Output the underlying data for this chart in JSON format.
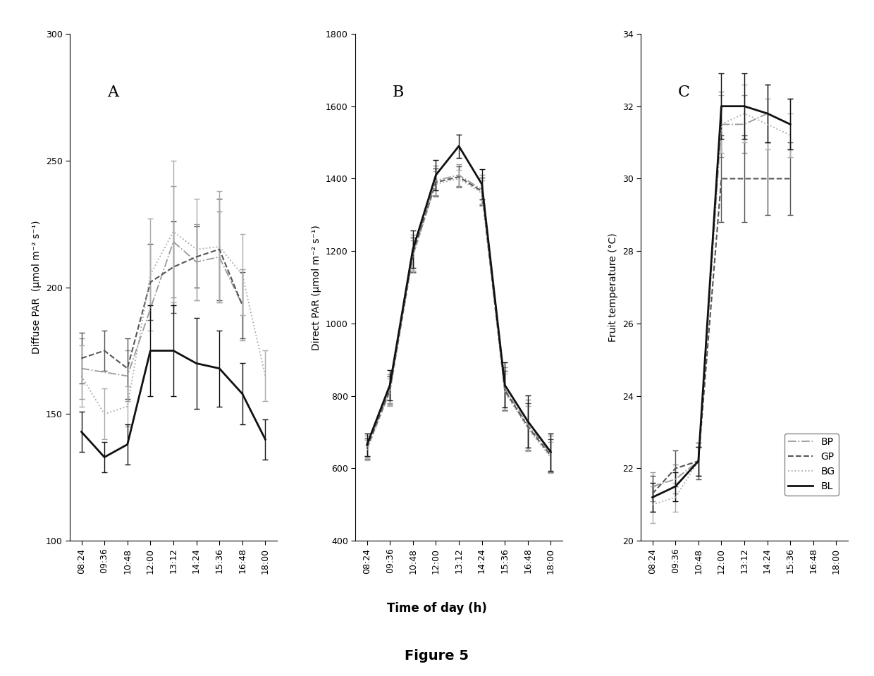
{
  "time_labels": [
    "08:24",
    "09:36",
    "10:48",
    "12:00",
    "13:12",
    "14:24",
    "15:36",
    "16:48",
    "18:00"
  ],
  "panel_A": {
    "label": "A",
    "ylabel": "Diffuse PAR  (μmol m⁻² s⁻¹)",
    "ylim": [
      100,
      300
    ],
    "yticks": [
      100,
      150,
      200,
      250,
      300
    ],
    "BP": {
      "y": [
        168,
        null,
        165,
        null,
        218,
        210,
        212,
        193,
        null
      ],
      "yerr": [
        12,
        null,
        10,
        null,
        22,
        15,
        18,
        14,
        null
      ]
    },
    "GP": {
      "y": [
        172,
        175,
        168,
        202,
        208,
        212,
        215,
        193,
        null
      ],
      "yerr": [
        10,
        8,
        12,
        15,
        18,
        12,
        20,
        13,
        null
      ]
    },
    "BG": {
      "y": [
        165,
        150,
        153,
        205,
        222,
        215,
        216,
        205,
        165
      ],
      "yerr": [
        12,
        10,
        8,
        22,
        28,
        20,
        22,
        16,
        10
      ]
    },
    "BL": {
      "y": [
        143,
        133,
        138,
        175,
        175,
        170,
        168,
        158,
        140
      ],
      "yerr": [
        8,
        6,
        8,
        18,
        18,
        18,
        15,
        12,
        8
      ]
    }
  },
  "panel_B": {
    "label": "B",
    "ylabel": "Direct PAR (μmol m⁻² s⁻¹)",
    "ylim": [
      400,
      1800
    ],
    "yticks": [
      400,
      600,
      800,
      1000,
      1200,
      1400,
      1600,
      1800
    ],
    "BP": {
      "y": [
        660,
        820,
        1195,
        1395,
        1410,
        1370,
        820,
        720,
        640
      ],
      "yerr": [
        30,
        40,
        50,
        40,
        30,
        40,
        60,
        70,
        50
      ]
    },
    "GP": {
      "y": [
        655,
        815,
        1190,
        1390,
        1405,
        1365,
        815,
        715,
        635
      ],
      "yerr": [
        28,
        38,
        48,
        38,
        28,
        38,
        55,
        65,
        45
      ]
    },
    "BG": {
      "y": [
        650,
        810,
        1185,
        1385,
        1400,
        1360,
        810,
        710,
        630
      ],
      "yerr": [
        28,
        38,
        45,
        35,
        25,
        35,
        52,
        62,
        42
      ]
    },
    "BL": {
      "y": [
        665,
        830,
        1205,
        1410,
        1490,
        1385,
        830,
        730,
        645
      ],
      "yerr": [
        32,
        42,
        52,
        42,
        32,
        42,
        62,
        72,
        52
      ]
    }
  },
  "panel_C": {
    "label": "C",
    "ylabel": "Fruit temperature (°C)",
    "ylim": [
      20,
      34
    ],
    "yticks": [
      20,
      22,
      24,
      26,
      28,
      30,
      32,
      34
    ],
    "BP": {
      "y": [
        21.5,
        21.7,
        22.2,
        31.5,
        31.5,
        31.8,
        31.5,
        null,
        null
      ],
      "yerr": [
        0.4,
        0.4,
        0.4,
        0.9,
        0.8,
        0.8,
        0.7,
        null,
        null
      ]
    },
    "GP": {
      "y": [
        21.3,
        22.0,
        22.2,
        30.0,
        30.0,
        30.0,
        30.0,
        null,
        null
      ],
      "yerr": [
        0.5,
        0.5,
        0.5,
        1.2,
        1.2,
        1.0,
        1.0,
        null,
        null
      ]
    },
    "BG": {
      "y": [
        21.0,
        21.2,
        22.2,
        31.5,
        31.8,
        31.5,
        31.2,
        null,
        null
      ],
      "yerr": [
        0.5,
        0.4,
        0.4,
        0.8,
        0.8,
        0.7,
        0.6,
        null,
        null
      ]
    },
    "BL": {
      "y": [
        21.2,
        21.5,
        22.2,
        32.0,
        32.0,
        31.8,
        31.5,
        null,
        null
      ],
      "yerr": [
        0.4,
        0.4,
        0.4,
        0.9,
        0.9,
        0.8,
        0.7,
        null,
        null
      ]
    }
  },
  "line_styles": {
    "BP": {
      "color": "#999999",
      "linestyle": "-.",
      "linewidth": 1.3
    },
    "GP": {
      "color": "#555555",
      "linestyle": "--",
      "linewidth": 1.5
    },
    "BG": {
      "color": "#aaaaaa",
      "linestyle": ":",
      "linewidth": 1.3
    },
    "BL": {
      "color": "#111111",
      "linestyle": "-",
      "linewidth": 2.0
    }
  },
  "figure_title": "Figure 5",
  "xlabel": "Time of day (h)",
  "background_color": "#ffffff"
}
